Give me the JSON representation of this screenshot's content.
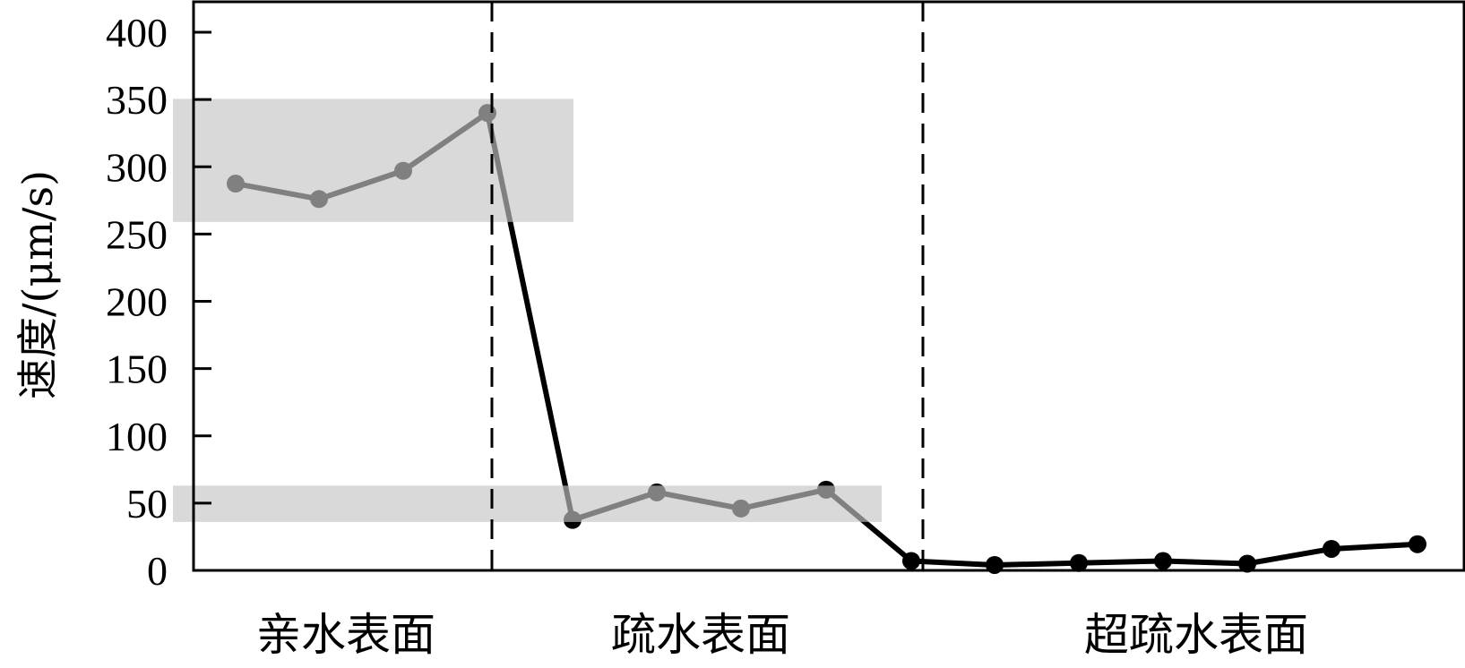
{
  "chart_data": {
    "type": "line",
    "title": "",
    "xlabel": "",
    "ylabel": "速度/(μm/s)",
    "ylim": [
      0,
      400
    ],
    "yticks": [
      0,
      50,
      100,
      150,
      200,
      250,
      300,
      350,
      400
    ],
    "grid": false,
    "groups": [
      {
        "label": "亲水表面",
        "values": [
          287.5,
          276,
          297,
          340
        ]
      },
      {
        "label": "疏水表面",
        "values": [
          37.5,
          58,
          46,
          60
        ]
      },
      {
        "label": "超疏水表面",
        "values": [
          7,
          4,
          5.5,
          7,
          5,
          16,
          19.5
        ]
      }
    ],
    "bands": [
      {
        "y_range": [
          259,
          350.5
        ],
        "spans_groups": [
          "亲水表面"
        ]
      },
      {
        "y_range": [
          36,
          63
        ],
        "spans_groups": [
          "亲水表面",
          "疏水表面"
        ]
      }
    ],
    "group_dividers": "dashed",
    "colors": {
      "line": "#000000",
      "marker": "#000000",
      "band": "#c5c5c5"
    }
  }
}
